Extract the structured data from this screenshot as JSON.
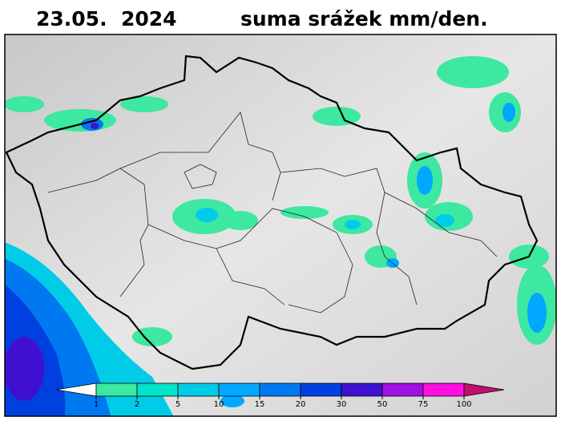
{
  "header": {
    "date": "23.05.  2024",
    "title": "suma srážek mm/den."
  },
  "legend": {
    "ticks": [
      1,
      2,
      5,
      10,
      15,
      20,
      30,
      50,
      75,
      100
    ],
    "colors": [
      "#ffffff",
      "#3de8a0",
      "#00e4c8",
      "#00cce8",
      "#00a8ff",
      "#0078f0",
      "#0040e0",
      "#4010d0",
      "#a010e0",
      "#ff10e0",
      "#c0106a"
    ]
  }
}
